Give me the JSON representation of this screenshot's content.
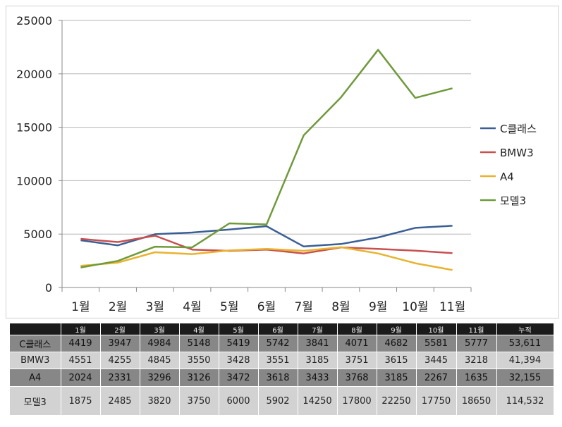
{
  "chart_data": {
    "type": "line",
    "categories": [
      "1월",
      "2월",
      "3월",
      "4월",
      "5월",
      "6월",
      "7월",
      "8월",
      "9월",
      "10월",
      "11월"
    ],
    "ylim": [
      0,
      25000
    ],
    "yticks": [
      0,
      5000,
      10000,
      15000,
      20000,
      25000
    ],
    "grid": true,
    "legend_position": "right",
    "series": [
      {
        "name": "C클래스",
        "color": "#3a5f95",
        "values": [
          4419,
          3947,
          4984,
          5148,
          5419,
          5742,
          3841,
          4071,
          4682,
          5581,
          5777
        ]
      },
      {
        "name": "BMW3",
        "color": "#c8504f",
        "values": [
          4551,
          4255,
          4845,
          3550,
          3428,
          3551,
          3185,
          3751,
          3615,
          3445,
          3218
        ]
      },
      {
        "name": "A4",
        "color": "#e8b32e",
        "values": [
          2024,
          2331,
          3296,
          3126,
          3472,
          3618,
          3433,
          3768,
          3185,
          2267,
          1635
        ]
      },
      {
        "name": "모델3",
        "color": "#6f9a3b",
        "values": [
          1875,
          2485,
          3820,
          3750,
          6000,
          5902,
          14250,
          17800,
          22250,
          17750,
          18650
        ]
      }
    ]
  },
  "table": {
    "headers": [
      "",
      "1월",
      "2월",
      "3월",
      "4월",
      "5월",
      "6월",
      "7월",
      "8월",
      "9월",
      "10월",
      "11월",
      "누적"
    ],
    "rows": [
      [
        "C클래스",
        "4419",
        "3947",
        "4984",
        "5148",
        "5419",
        "5742",
        "3841",
        "4071",
        "4682",
        "5581",
        "5777",
        "53,611"
      ],
      [
        "BMW3",
        "4551",
        "4255",
        "4845",
        "3550",
        "3428",
        "3551",
        "3185",
        "3751",
        "3615",
        "3445",
        "3218",
        "41,394"
      ],
      [
        "A4",
        "2024",
        "2331",
        "3296",
        "3126",
        "3472",
        "3618",
        "3433",
        "3768",
        "3185",
        "2267",
        "1635",
        "32,155"
      ],
      [
        "모델3",
        "1875",
        "2485",
        "3820",
        "3750",
        "6000",
        "5902",
        "14250",
        "17800",
        "22250",
        "17750",
        "18650",
        "114,532"
      ]
    ]
  }
}
